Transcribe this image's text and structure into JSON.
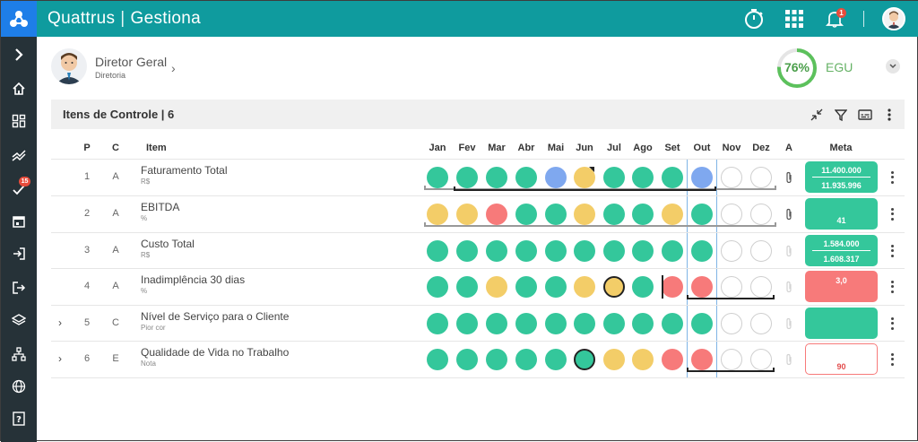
{
  "app": {
    "brand_left": "Quattrus",
    "brand_sep": "|",
    "brand_right": "Gestiona",
    "notifications_count": "1"
  },
  "sidebar": {
    "items": [
      {
        "icon": "chevron-right-icon"
      },
      {
        "icon": "home-icon"
      },
      {
        "icon": "dashboard-icon"
      },
      {
        "icon": "trend-icon"
      },
      {
        "icon": "check-icon",
        "badge": "15"
      },
      {
        "icon": "calendar-icon"
      },
      {
        "icon": "login-icon"
      },
      {
        "icon": "logout-icon"
      },
      {
        "icon": "layers-icon"
      },
      {
        "icon": "sitemap-icon"
      },
      {
        "icon": "globe-icon"
      },
      {
        "icon": "help-icon"
      }
    ]
  },
  "header": {
    "user_name": "Diretor Geral",
    "user_role": "Diretoria",
    "score": "76%",
    "score_value": 0.76,
    "score_label": "EGU"
  },
  "panel": {
    "title": "Itens de Controle | 6"
  },
  "columns": {
    "p": "P",
    "c": "C",
    "item": "Item",
    "a": "A",
    "meta": "Meta",
    "months": [
      "Jan",
      "Fev",
      "Mar",
      "Abr",
      "Mai",
      "Jun",
      "Jul",
      "Ago",
      "Set",
      "Out",
      "Nov",
      "Dez"
    ]
  },
  "rows": [
    {
      "p": "1",
      "c": "A",
      "name": "Faturamento Total",
      "unit": "R$",
      "expand": "",
      "status": [
        "g",
        "g",
        "g",
        "g",
        "b",
        "y",
        "g",
        "g",
        "g",
        "b",
        "e",
        "e"
      ],
      "meta_top": "11.400.000",
      "meta_bottom": "11.935.996",
      "meta_style": "green"
    },
    {
      "p": "2",
      "c": "A",
      "name": "EBITDA",
      "unit": "%",
      "expand": "",
      "status": [
        "y",
        "y",
        "r",
        "g",
        "g",
        "y",
        "g",
        "g",
        "y",
        "g",
        "e",
        "e"
      ],
      "meta_top": "",
      "meta_bottom": "41",
      "meta_style": "green"
    },
    {
      "p": "3",
      "c": "A",
      "name": "Custo Total",
      "unit": "R$",
      "expand": "",
      "status": [
        "g",
        "g",
        "g",
        "g",
        "g",
        "g",
        "g",
        "g",
        "g",
        "g",
        "e",
        "e"
      ],
      "meta_top": "1.584.000",
      "meta_bottom": "1.608.317",
      "meta_style": "green"
    },
    {
      "p": "4",
      "c": "A",
      "name": "Inadimplência 30 dias",
      "unit": "%",
      "expand": "",
      "status": [
        "g",
        "g",
        "y",
        "g",
        "g",
        "y",
        "y",
        "g",
        "r",
        "r",
        "e",
        "e"
      ],
      "meta_top": "3,0",
      "meta_bottom": "",
      "meta_style": "red"
    },
    {
      "p": "5",
      "c": "C",
      "name": "Nível de Serviço para o Cliente",
      "unit": "Pior cor",
      "expand": "›",
      "status": [
        "g",
        "g",
        "g",
        "g",
        "g",
        "g",
        "g",
        "g",
        "g",
        "g",
        "e",
        "e"
      ],
      "meta_top": "",
      "meta_bottom": "",
      "meta_style": "green"
    },
    {
      "p": "6",
      "c": "E",
      "name": "Qualidade de Vida no Trabalho",
      "unit": "Nota",
      "expand": "›",
      "status": [
        "g",
        "g",
        "g",
        "g",
        "g",
        "g",
        "y",
        "y",
        "r",
        "r",
        "e",
        "e"
      ],
      "meta_top": "",
      "meta_bottom": "90",
      "meta_style": "outline"
    }
  ],
  "colors": {
    "topbar": "#0f9b9e",
    "green": "#34c79b",
    "blue": "#7fa8ef",
    "yellow": "#f3cd68",
    "red": "#f77a7a"
  }
}
